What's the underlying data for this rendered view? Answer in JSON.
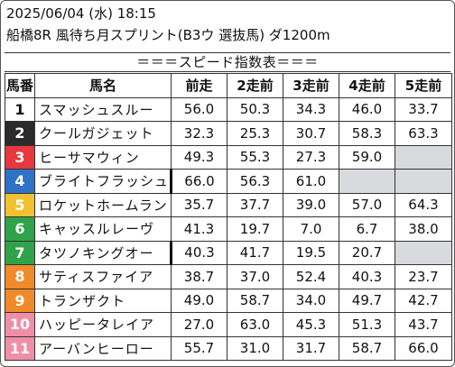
{
  "header": {
    "datetime": "2025/06/04 (水) 18:15",
    "race": "船橋8R 風待ち月スプリント(B3ウ 選抜馬) ダ1200m",
    "banner": "＝＝＝スピード指数表＝＝＝"
  },
  "columns": [
    "馬番",
    "馬名",
    "前走",
    "2走前",
    "3走前",
    "4走前",
    "5走前"
  ],
  "rows": [
    {
      "num": "1",
      "name": "スマッシュスルー",
      "v": [
        "56.0",
        "50.3",
        "34.3",
        "46.0",
        "33.7"
      ],
      "bg": "#ffffff",
      "fg": "#111111",
      "thick": false
    },
    {
      "num": "2",
      "name": "クールガジェット",
      "v": [
        "32.3",
        "25.3",
        "30.7",
        "58.3",
        "63.3"
      ],
      "bg": "#2b2b2b",
      "fg": "#ffffff",
      "thick": false
    },
    {
      "num": "3",
      "name": "ヒーサマウィン",
      "v": [
        "49.3",
        "55.3",
        "27.3",
        "59.0",
        ""
      ],
      "bg": "#e8383d",
      "fg": "#ffffff",
      "thick": false
    },
    {
      "num": "4",
      "name": "ブライトフラッシュ",
      "v": [
        "66.0",
        "56.3",
        "61.0",
        "",
        ""
      ],
      "bg": "#2f73c7",
      "fg": "#ffffff",
      "thick": true
    },
    {
      "num": "5",
      "name": "ロケットホームラン",
      "v": [
        "35.7",
        "37.7",
        "39.0",
        "57.0",
        "64.3"
      ],
      "bg": "#f2c12e",
      "fg": "#ffffff",
      "thick": false
    },
    {
      "num": "6",
      "name": "キャッスルレーヴ",
      "v": [
        "41.3",
        "19.7",
        "7.0",
        "6.7",
        "38.0"
      ],
      "bg": "#2fa34a",
      "fg": "#ffffff",
      "thick": false
    },
    {
      "num": "7",
      "name": "タツノキングオー",
      "v": [
        "40.3",
        "41.7",
        "19.5",
        "20.7",
        ""
      ],
      "bg": "#2fa34a",
      "fg": "#ffffff",
      "thick": true
    },
    {
      "num": "8",
      "name": "サティスファイア",
      "v": [
        "38.7",
        "37.0",
        "52.4",
        "40.3",
        "23.7"
      ],
      "bg": "#f08a2a",
      "fg": "#ffffff",
      "thick": false
    },
    {
      "num": "9",
      "name": "トランザクト",
      "v": [
        "49.0",
        "58.7",
        "34.0",
        "49.7",
        "42.7"
      ],
      "bg": "#f08a2a",
      "fg": "#ffffff",
      "thick": false
    },
    {
      "num": "10",
      "name": "ハッピータレイア",
      "v": [
        "27.0",
        "63.0",
        "45.3",
        "51.3",
        "43.7"
      ],
      "bg": "#f08ea8",
      "fg": "#ffffff",
      "thick": false
    },
    {
      "num": "11",
      "name": "アーバンヒーロー",
      "v": [
        "55.7",
        "31.0",
        "31.7",
        "58.7",
        "66.0"
      ],
      "bg": "#f08ea8",
      "fg": "#ffffff",
      "thick": false
    }
  ]
}
